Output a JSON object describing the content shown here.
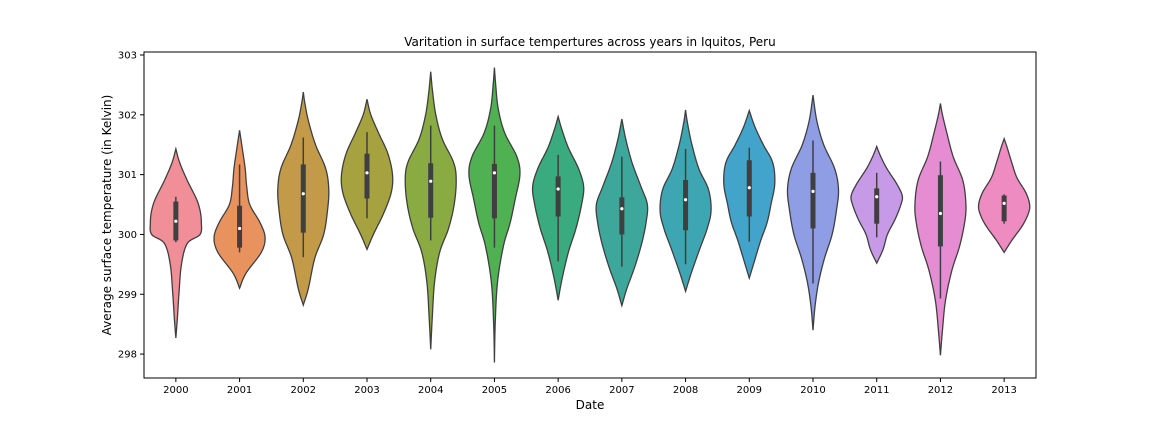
{
  "chart_data": {
    "type": "violin",
    "title": "Varitation in surface tempertures across years in Iquitos, Peru",
    "xlabel": "Date",
    "ylabel": "Average surface temperature (in Kelvin)",
    "ylim": [
      297.6,
      303.05
    ],
    "yticks": [
      298,
      299,
      300,
      301,
      302,
      303
    ],
    "grid": false,
    "categories": [
      "2000",
      "2001",
      "2002",
      "2003",
      "2004",
      "2005",
      "2006",
      "2007",
      "2008",
      "2009",
      "2010",
      "2011",
      "2012",
      "2013"
    ],
    "colors": [
      "#f08f98",
      "#e8935e",
      "#c29a48",
      "#a6a240",
      "#8aab41",
      "#4fb152",
      "#39ab7e",
      "#3da79c",
      "#3ea6b2",
      "#42a4cb",
      "#8e9de4",
      "#c79ae8",
      "#e68cd2",
      "#ee8bc1"
    ],
    "series": [
      {
        "category": "2000",
        "min": 298.27,
        "max": 301.43,
        "q1": 299.9,
        "median": 300.22,
        "q3": 300.55,
        "whisker_low": 299.87,
        "whisker_high": 300.63,
        "profile": [
          [
            298.27,
            0.0
          ],
          [
            298.6,
            0.06
          ],
          [
            299.0,
            0.12
          ],
          [
            299.5,
            0.22
          ],
          [
            299.85,
            0.45
          ],
          [
            300.0,
            0.95
          ],
          [
            300.2,
            1.0
          ],
          [
            300.4,
            0.95
          ],
          [
            300.6,
            0.8
          ],
          [
            300.9,
            0.45
          ],
          [
            301.2,
            0.15
          ],
          [
            301.43,
            0.0
          ]
        ]
      },
      {
        "category": "2001",
        "min": 299.1,
        "max": 301.74,
        "q1": 299.78,
        "median": 300.1,
        "q3": 300.48,
        "whisker_low": 299.7,
        "whisker_high": 301.17,
        "profile": [
          [
            299.1,
            0.0
          ],
          [
            299.35,
            0.25
          ],
          [
            299.7,
            0.85
          ],
          [
            299.95,
            1.0
          ],
          [
            300.2,
            0.8
          ],
          [
            300.5,
            0.4
          ],
          [
            300.8,
            0.28
          ],
          [
            301.1,
            0.22
          ],
          [
            301.4,
            0.12
          ],
          [
            301.74,
            0.0
          ]
        ]
      },
      {
        "category": "2002",
        "min": 298.82,
        "max": 302.38,
        "q1": 300.03,
        "median": 300.68,
        "q3": 301.17,
        "whisker_low": 299.62,
        "whisker_high": 301.62,
        "profile": [
          [
            298.82,
            0.0
          ],
          [
            299.1,
            0.2
          ],
          [
            299.6,
            0.45
          ],
          [
            300.0,
            0.8
          ],
          [
            300.4,
            0.95
          ],
          [
            300.75,
            1.0
          ],
          [
            301.1,
            0.88
          ],
          [
            301.5,
            0.48
          ],
          [
            301.9,
            0.2
          ],
          [
            302.2,
            0.06
          ],
          [
            302.38,
            0.0
          ]
        ]
      },
      {
        "category": "2003",
        "min": 299.75,
        "max": 302.26,
        "q1": 300.6,
        "median": 301.03,
        "q3": 301.35,
        "whisker_low": 300.27,
        "whisker_high": 301.71,
        "profile": [
          [
            299.75,
            0.0
          ],
          [
            300.0,
            0.25
          ],
          [
            300.35,
            0.65
          ],
          [
            300.7,
            0.95
          ],
          [
            301.0,
            1.0
          ],
          [
            301.35,
            0.82
          ],
          [
            301.7,
            0.45
          ],
          [
            302.0,
            0.15
          ],
          [
            302.26,
            0.0
          ]
        ]
      },
      {
        "category": "2004",
        "min": 298.08,
        "max": 302.72,
        "q1": 300.28,
        "median": 300.89,
        "q3": 301.19,
        "whisker_low": 299.9,
        "whisker_high": 301.82,
        "profile": [
          [
            298.08,
            0.0
          ],
          [
            298.6,
            0.06
          ],
          [
            299.2,
            0.15
          ],
          [
            299.7,
            0.35
          ],
          [
            300.1,
            0.7
          ],
          [
            300.5,
            0.92
          ],
          [
            300.9,
            1.0
          ],
          [
            301.2,
            0.9
          ],
          [
            301.6,
            0.45
          ],
          [
            302.0,
            0.2
          ],
          [
            302.4,
            0.07
          ],
          [
            302.72,
            0.0
          ]
        ]
      },
      {
        "category": "2005",
        "min": 297.86,
        "max": 302.79,
        "q1": 300.27,
        "median": 301.03,
        "q3": 301.18,
        "whisker_low": 299.78,
        "whisker_high": 301.82,
        "profile": [
          [
            297.86,
            0.0
          ],
          [
            298.5,
            0.03
          ],
          [
            299.2,
            0.12
          ],
          [
            299.8,
            0.35
          ],
          [
            300.2,
            0.62
          ],
          [
            300.6,
            0.82
          ],
          [
            301.0,
            1.0
          ],
          [
            301.3,
            0.88
          ],
          [
            301.7,
            0.4
          ],
          [
            302.1,
            0.15
          ],
          [
            302.5,
            0.05
          ],
          [
            302.79,
            0.0
          ]
        ]
      },
      {
        "category": "2006",
        "min": 298.9,
        "max": 301.97,
        "q1": 300.3,
        "median": 300.76,
        "q3": 300.97,
        "whisker_low": 299.55,
        "whisker_high": 301.33,
        "profile": [
          [
            298.9,
            0.0
          ],
          [
            299.25,
            0.15
          ],
          [
            299.7,
            0.4
          ],
          [
            300.1,
            0.7
          ],
          [
            300.5,
            0.92
          ],
          [
            300.8,
            1.0
          ],
          [
            301.1,
            0.8
          ],
          [
            301.45,
            0.4
          ],
          [
            301.75,
            0.15
          ],
          [
            301.97,
            0.0
          ]
        ]
      },
      {
        "category": "2007",
        "min": 298.81,
        "max": 301.93,
        "q1": 300.0,
        "median": 300.43,
        "q3": 300.62,
        "whisker_low": 299.46,
        "whisker_high": 301.3,
        "profile": [
          [
            298.81,
            0.0
          ],
          [
            299.1,
            0.2
          ],
          [
            299.45,
            0.5
          ],
          [
            299.85,
            0.78
          ],
          [
            300.2,
            0.95
          ],
          [
            300.5,
            1.0
          ],
          [
            300.8,
            0.75
          ],
          [
            301.2,
            0.4
          ],
          [
            301.6,
            0.15
          ],
          [
            301.93,
            0.0
          ]
        ]
      },
      {
        "category": "2008",
        "min": 299.05,
        "max": 302.08,
        "q1": 300.07,
        "median": 300.58,
        "q3": 300.91,
        "whisker_low": 299.5,
        "whisker_high": 301.43,
        "profile": [
          [
            299.05,
            0.0
          ],
          [
            299.35,
            0.22
          ],
          [
            299.75,
            0.55
          ],
          [
            300.1,
            0.85
          ],
          [
            300.4,
            1.0
          ],
          [
            300.75,
            0.9
          ],
          [
            301.1,
            0.52
          ],
          [
            301.5,
            0.25
          ],
          [
            301.85,
            0.08
          ],
          [
            302.08,
            0.0
          ]
        ]
      },
      {
        "category": "2009",
        "min": 299.27,
        "max": 302.07,
        "q1": 300.3,
        "median": 300.78,
        "q3": 301.24,
        "whisker_low": 299.88,
        "whisker_high": 301.45,
        "profile": [
          [
            299.27,
            0.0
          ],
          [
            299.55,
            0.2
          ],
          [
            299.9,
            0.45
          ],
          [
            300.2,
            0.7
          ],
          [
            300.5,
            0.85
          ],
          [
            300.85,
            1.0
          ],
          [
            301.2,
            0.92
          ],
          [
            301.5,
            0.55
          ],
          [
            301.8,
            0.22
          ],
          [
            302.07,
            0.0
          ]
        ]
      },
      {
        "category": "2010",
        "min": 298.4,
        "max": 302.33,
        "q1": 300.1,
        "median": 300.72,
        "q3": 301.03,
        "whisker_low": 299.18,
        "whisker_high": 301.57,
        "profile": [
          [
            298.4,
            0.0
          ],
          [
            298.8,
            0.08
          ],
          [
            299.2,
            0.22
          ],
          [
            299.6,
            0.45
          ],
          [
            300.0,
            0.75
          ],
          [
            300.4,
            0.92
          ],
          [
            300.75,
            1.0
          ],
          [
            301.1,
            0.85
          ],
          [
            301.5,
            0.42
          ],
          [
            301.9,
            0.15
          ],
          [
            302.33,
            0.0
          ]
        ]
      },
      {
        "category": "2011",
        "min": 299.52,
        "max": 301.47,
        "q1": 300.18,
        "median": 300.63,
        "q3": 300.77,
        "whisker_low": 299.95,
        "whisker_high": 301.03,
        "profile": [
          [
            299.52,
            0.0
          ],
          [
            299.75,
            0.25
          ],
          [
            300.0,
            0.42
          ],
          [
            300.25,
            0.72
          ],
          [
            300.5,
            0.95
          ],
          [
            300.65,
            1.0
          ],
          [
            300.85,
            0.78
          ],
          [
            301.1,
            0.4
          ],
          [
            301.3,
            0.16
          ],
          [
            301.47,
            0.0
          ]
        ]
      },
      {
        "category": "2012",
        "min": 297.98,
        "max": 302.19,
        "q1": 299.8,
        "median": 300.35,
        "q3": 300.99,
        "whisker_low": 298.93,
        "whisker_high": 301.22,
        "profile": [
          [
            297.98,
            0.0
          ],
          [
            298.4,
            0.08
          ],
          [
            298.9,
            0.2
          ],
          [
            299.4,
            0.45
          ],
          [
            299.8,
            0.75
          ],
          [
            300.2,
            0.95
          ],
          [
            300.5,
            1.0
          ],
          [
            300.9,
            0.88
          ],
          [
            301.3,
            0.5
          ],
          [
            301.7,
            0.25
          ],
          [
            302.0,
            0.08
          ],
          [
            302.19,
            0.0
          ]
        ]
      },
      {
        "category": "2013",
        "min": 299.7,
        "max": 301.6,
        "q1": 300.22,
        "median": 300.52,
        "q3": 300.65,
        "whisker_low": 300.18,
        "whisker_high": 300.67,
        "profile": [
          [
            299.7,
            0.0
          ],
          [
            299.9,
            0.3
          ],
          [
            300.15,
            0.72
          ],
          [
            300.35,
            0.95
          ],
          [
            300.5,
            1.0
          ],
          [
            300.7,
            0.85
          ],
          [
            300.95,
            0.5
          ],
          [
            301.2,
            0.3
          ],
          [
            301.45,
            0.12
          ],
          [
            301.6,
            0.0
          ]
        ]
      }
    ]
  }
}
